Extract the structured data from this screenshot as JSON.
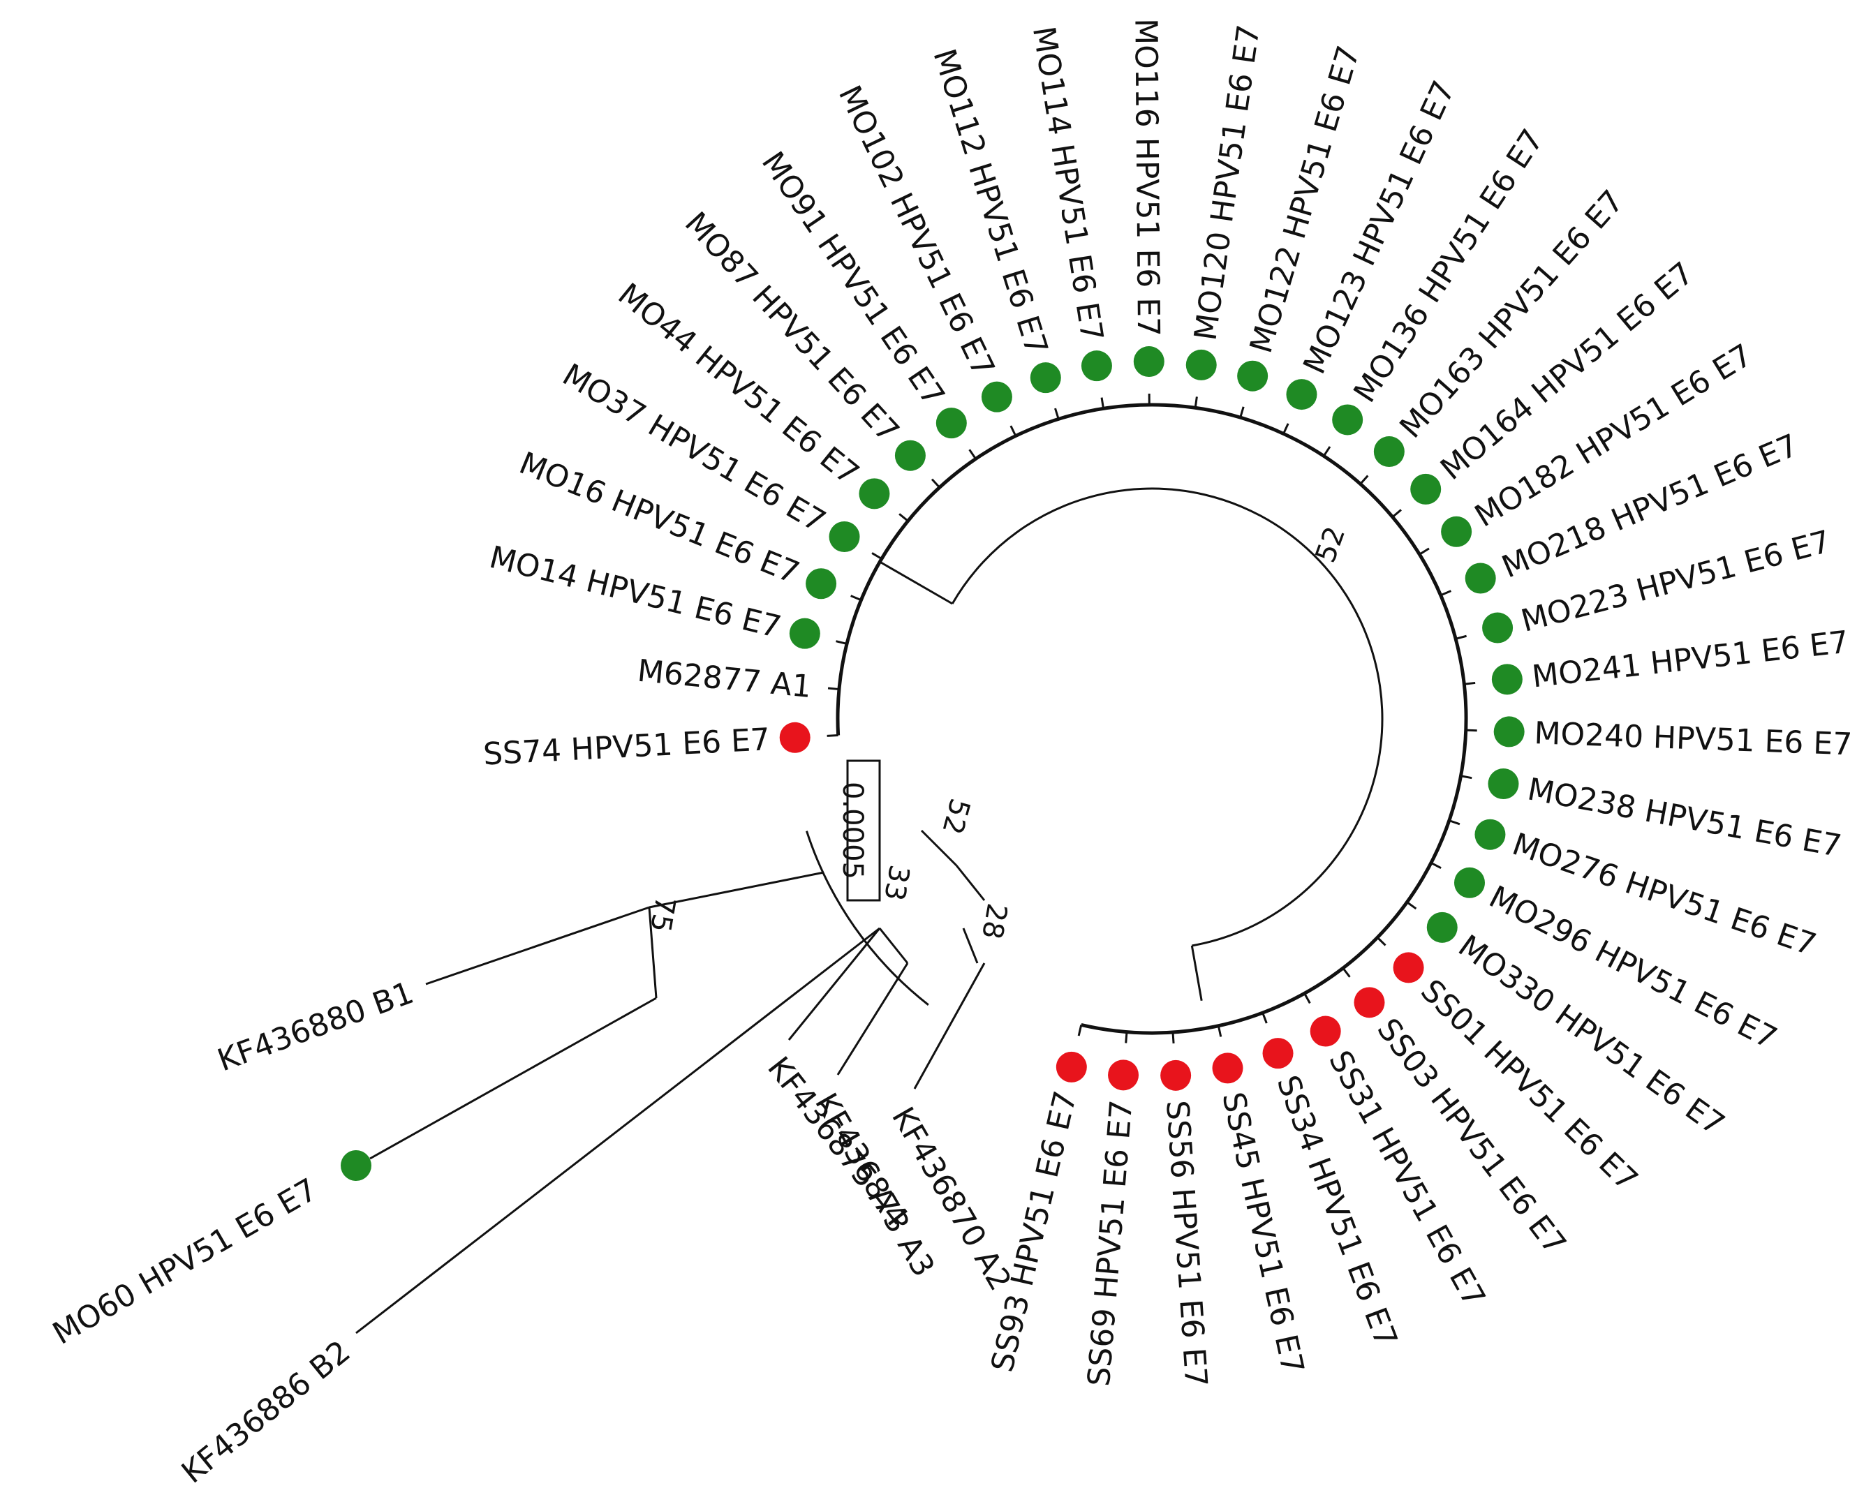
{
  "colors": {
    "group_mo": "#1f8a24",
    "group_ss": "#e8141c",
    "line": "#111111"
  },
  "tree": {
    "clade_main_leaves": [
      {
        "label": "SS74 HPV51 E6 E7",
        "group": "ss"
      },
      {
        "label": "M62877 A1",
        "group": "none"
      },
      {
        "label": "MO14 HPV51 E6 E7",
        "group": "mo"
      },
      {
        "label": "MO16 HPV51 E6 E7",
        "group": "mo"
      },
      {
        "label": "MO37 HPV51 E6 E7",
        "group": "mo"
      },
      {
        "label": "MO44 HPV51 E6 E7",
        "group": "mo"
      },
      {
        "label": "MO87 HPV51 E6 E7",
        "group": "mo"
      },
      {
        "label": "MO91 HPV51 E6 E7",
        "group": "mo"
      },
      {
        "label": "MO102 HPV51 E6 E7",
        "group": "mo"
      },
      {
        "label": "MO112 HPV51 E6 E7",
        "group": "mo"
      },
      {
        "label": "MO114 HPV51 E6 E7",
        "group": "mo"
      },
      {
        "label": "MO116 HPV51 E6 E7",
        "group": "mo"
      },
      {
        "label": "MO120 HPV51 E6 E7",
        "group": "mo"
      },
      {
        "label": "MO122 HPV51 E6 E7",
        "group": "mo"
      },
      {
        "label": "MO123 HPV51 E6 E7",
        "group": "mo"
      },
      {
        "label": "MO136 HPV51 E6 E7",
        "group": "mo"
      },
      {
        "label": "MO163 HPV51 E6 E7",
        "group": "mo"
      },
      {
        "label": "MO164 HPV51 E6 E7",
        "group": "mo"
      },
      {
        "label": "MO182 HPV51 E6 E7",
        "group": "mo"
      },
      {
        "label": "MO218 HPV51 E6 E7",
        "group": "mo"
      },
      {
        "label": "MO223 HPV51 E6 E7",
        "group": "mo"
      },
      {
        "label": "MO241 HPV51 E6 E7",
        "group": "mo"
      },
      {
        "label": "MO240 HPV51 E6 E7",
        "group": "mo"
      },
      {
        "label": "MO238 HPV51 E6 E7",
        "group": "mo"
      },
      {
        "label": "MO276 HPV51 E6 E7",
        "group": "mo"
      },
      {
        "label": "MO296 HPV51 E6 E7",
        "group": "mo"
      },
      {
        "label": "MO330 HPV51 E6 E7",
        "group": "mo"
      },
      {
        "label": "SS01 HPV51 E6 E7",
        "group": "ss"
      },
      {
        "label": "SS03 HPV51 E6 E7",
        "group": "ss"
      },
      {
        "label": "SS31 HPV51 E6 E7",
        "group": "ss"
      },
      {
        "label": "SS34 HPV51 E6 E7",
        "group": "ss"
      },
      {
        "label": "SS45 HPV51 E6 E7",
        "group": "ss"
      },
      {
        "label": "SS56 HPV51 E6 E7",
        "group": "ss"
      },
      {
        "label": "SS69 HPV51 E6 E7",
        "group": "ss"
      },
      {
        "label": "SS93 HPV51 E6 E7",
        "group": "ss"
      }
    ],
    "outer_leaves": [
      {
        "label": "KF436870 A2",
        "group": "none"
      },
      {
        "label": "KF436873 A3",
        "group": "none"
      },
      {
        "label": "KF436875 A4",
        "group": "none"
      },
      {
        "label": "KF436880 B1",
        "group": "none"
      },
      {
        "label": "MO60 HPV51 E6 E7",
        "group": "mo"
      },
      {
        "label": "KF436886 B2",
        "group": "none"
      }
    ],
    "bootstrap": [
      "52",
      "52",
      "75",
      "33",
      "28"
    ],
    "scale_label": "0.0005"
  }
}
